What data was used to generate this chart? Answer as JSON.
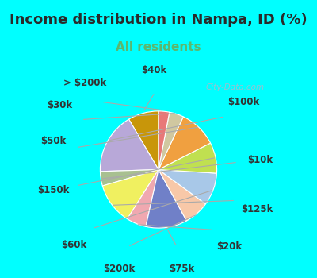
{
  "title": "Income distribution in Nampa, ID (%)",
  "subtitle": "All residents",
  "background_top": "#00FFFF",
  "background_chart": "#e0f0e8",
  "labels": [
    "$40k",
    "$100k",
    "$10k",
    "$125k",
    "$20k",
    "$75k",
    "$200k",
    "$60k",
    "$150k",
    "$50k",
    "$30k",
    "> $200k"
  ],
  "sizes": [
    8.5,
    17.0,
    4.0,
    11.5,
    5.5,
    11.5,
    7.0,
    9.0,
    8.5,
    10.5,
    4.0,
    3.0
  ],
  "colors": [
    "#c8960a",
    "#b8a8d8",
    "#a8c090",
    "#f0f060",
    "#f0a8b0",
    "#7080c8",
    "#f8c8a8",
    "#a8c8e8",
    "#c0e050",
    "#f0a040",
    "#d0c8a0",
    "#e87878"
  ],
  "startangle": 90,
  "title_fontsize": 13,
  "subtitle_fontsize": 11,
  "label_fontsize": 8.5,
  "label_color": "#333333",
  "line_color": "#aaaaaa",
  "watermark": "City-Data.com",
  "watermark_color": "#b0b8c8",
  "subtitle_color": "#5ab870"
}
